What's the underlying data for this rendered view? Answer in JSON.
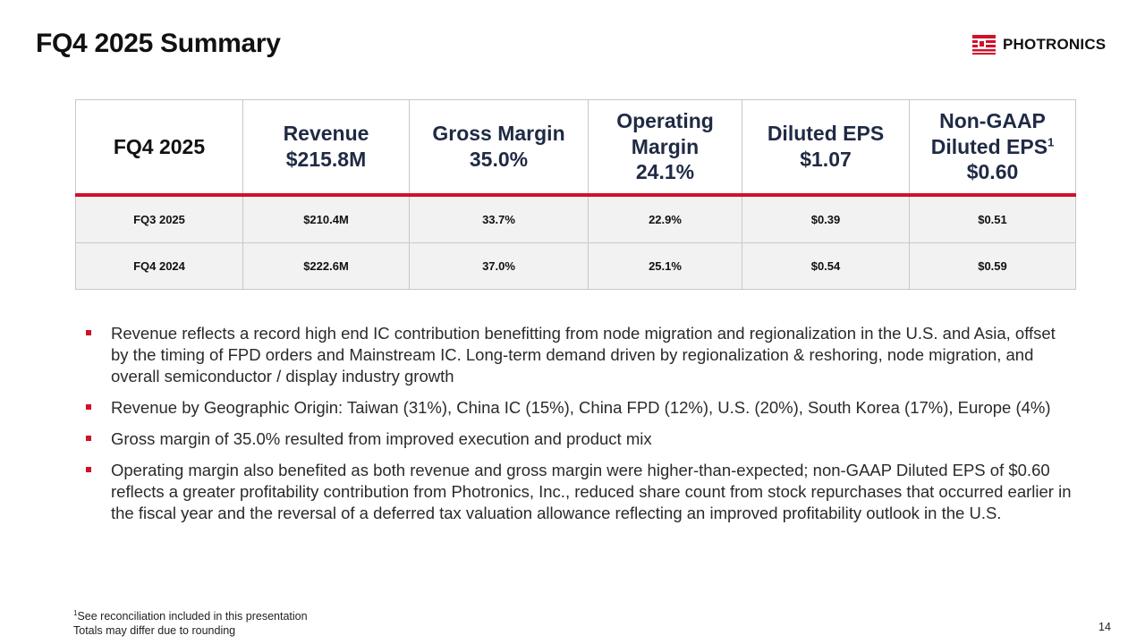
{
  "title": "FQ4 2025 Summary",
  "logo": {
    "text": "PHOTRONICS",
    "color": "#d0112b"
  },
  "table": {
    "header": {
      "period": "FQ4 2025",
      "revenue_label": "Revenue",
      "revenue_value": "$215.8M",
      "gross_margin_label": "Gross Margin",
      "gross_margin_value": "35.0%",
      "operating_margin_label_1": "Operating",
      "operating_margin_label_2": "Margin",
      "operating_margin_value": "24.1%",
      "diluted_eps_label": "Diluted EPS",
      "diluted_eps_value": "$1.07",
      "non_gaap_label_1": "Non-GAAP",
      "non_gaap_label_2": "Diluted EPS",
      "non_gaap_footnote": "1",
      "non_gaap_value": "$0.60"
    },
    "rows": [
      {
        "period": "FQ3 2025",
        "revenue": "$210.4M",
        "gross_margin": "33.7%",
        "operating_margin": "22.9%",
        "diluted_eps": "$0.39",
        "non_gaap_eps": "$0.51"
      },
      {
        "period": "FQ4 2024",
        "revenue": "$222.6M",
        "gross_margin": "37.0%",
        "operating_margin": "25.1%",
        "diluted_eps": "$0.54",
        "non_gaap_eps": "$0.59"
      }
    ]
  },
  "bullets": [
    "Revenue reflects a record high end IC contribution benefitting from node migration and regionalization in the U.S. and Asia, offset by the timing of FPD orders and Mainstream IC. Long-term demand driven by regionalization & reshoring, node migration, and overall semiconductor / display industry growth",
    "Revenue by Geographic Origin: Taiwan (31%), China IC (15%), China FPD (12%), U.S. (20%), South Korea (17%), Europe (4%)",
    "Gross margin of 35.0% resulted from improved execution and product mix",
    "Operating margin also benefited as both revenue and gross margin were higher-than-expected; non-GAAP Diluted EPS of $0.60 reflects a greater profitability contribution from Photronics, Inc., reduced share count from stock repurchases that occurred earlier in the fiscal year and the reversal of a deferred tax valuation allowance reflecting an improved profitability outlook in the U.S."
  ],
  "footnote": {
    "marker": "1",
    "line1": "See reconciliation included in this presentation",
    "line2": "Totals may differ due to rounding"
  },
  "page_number": "14"
}
